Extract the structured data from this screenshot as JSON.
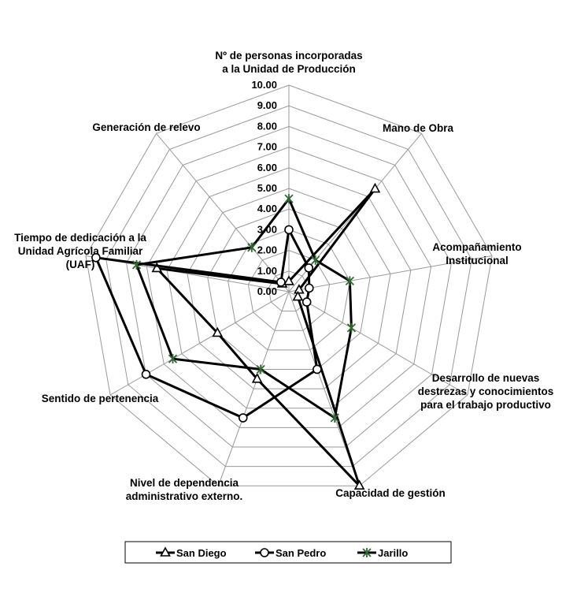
{
  "chart_data": {
    "type": "radar",
    "axes": [
      [
        "Nº de personas incorporadas",
        "a la Unidad de Producción"
      ],
      [
        "Mano de Obra"
      ],
      [
        "Acompañamiento",
        "Institucional"
      ],
      [
        "Desarrollo de nuevas",
        "destrezas y conocimientos",
        "para el trabajo productivo"
      ],
      [
        "Capacidad de gestión"
      ],
      [
        "Nivel de dependencia",
        "administrativo externo."
      ],
      [
        "Sentido de pertenencia"
      ],
      [
        "Tiempo de dedicación a la",
        "Unidad Agrícola Familiar",
        "(UAF)"
      ],
      [
        "Generación de relevo"
      ]
    ],
    "rlim": [
      0,
      10
    ],
    "ticks": [
      "0.00",
      "1.00",
      "2.00",
      "3.00",
      "4.00",
      "5.00",
      "6.00",
      "7.00",
      "8.00",
      "9.00",
      "10.00"
    ],
    "grid": true,
    "legend_position": "bottom",
    "series": [
      {
        "name": "San Diego",
        "marker": "triangle",
        "values": [
          0.5,
          6.5,
          0.5,
          0.5,
          10.0,
          4.5,
          4.0,
          6.5,
          0.5
        ]
      },
      {
        "name": "San Pedro",
        "marker": "circle",
        "values": [
          3.0,
          1.5,
          1.0,
          1.0,
          4.0,
          6.5,
          8.0,
          9.5,
          0.6
        ]
      },
      {
        "name": "Jarillo",
        "marker": "asterisk",
        "values": [
          4.5,
          2.0,
          3.0,
          3.5,
          6.5,
          4.0,
          6.5,
          7.5,
          2.8
        ]
      }
    ]
  }
}
